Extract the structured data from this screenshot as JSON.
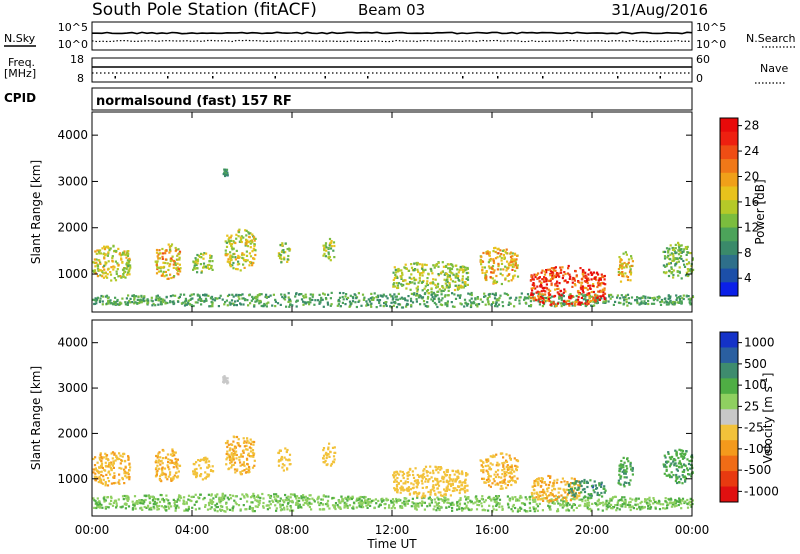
{
  "header": {
    "station": "South Pole Station (fitACF)",
    "beam": "Beam 03",
    "date": "31/Aug/2016",
    "cpid_label": "CPID",
    "cpid_value": "normalsound (fast) 157 RF"
  },
  "top_panels": {
    "nsky_label": "N.Sky",
    "nsearch_label": "N.Search",
    "noise_ticks_left": [
      "10^5",
      "10^0"
    ],
    "noise_ticks_right": [
      "10^5",
      "10^0"
    ],
    "freq_label": "Freq.",
    "freq_unit": "[MHz]",
    "freq_ticks": [
      "18",
      "8"
    ],
    "nave_label": "Nave",
    "nave_ticks": [
      "60",
      "0"
    ]
  },
  "chart_data": [
    {
      "type": "heatmap",
      "title": "",
      "ylabel": "Slant Range [km]",
      "xlabel": "",
      "x_ticks": [
        "00:00",
        "04:00",
        "08:00",
        "12:00",
        "16:00",
        "20:00",
        "00:00"
      ],
      "y_ticks": [
        1000,
        2000,
        3000,
        4000
      ],
      "ylim": [
        180,
        4500
      ],
      "colorbar": {
        "label": "Power [dB]",
        "ticks": [
          "4",
          "8",
          "12",
          "16",
          "20",
          "24",
          "28"
        ],
        "range": [
          0,
          30
        ],
        "colors": [
          "#0b20e8",
          "#1c4fa8",
          "#2e6f8a",
          "#3a8a6a",
          "#4ca35a",
          "#7bbd3e",
          "#b5c928",
          "#e8c21c",
          "#f0a019",
          "#f07818",
          "#ef4d14",
          "#ee2010",
          "#e80a0a"
        ]
      },
      "features": [
        {
          "start_h": 0.0,
          "end_h": 24.0,
          "range_km": [
            300,
            620
          ],
          "value_db": 10,
          "note": ""
        },
        {
          "start_h": 0.0,
          "end_h": 1.5,
          "range_km": [
            850,
            1650
          ],
          "value_db": 16
        },
        {
          "start_h": 2.5,
          "end_h": 3.5,
          "range_km": [
            900,
            1700
          ],
          "value_db": 18
        },
        {
          "start_h": 4.0,
          "end_h": 4.8,
          "range_km": [
            1000,
            1500
          ],
          "value_db": 14
        },
        {
          "start_h": 5.3,
          "end_h": 6.5,
          "range_km": [
            1100,
            2000
          ],
          "value_db": 16
        },
        {
          "start_h": 7.4,
          "end_h": 7.9,
          "range_km": [
            1200,
            1700
          ],
          "value_db": 14
        },
        {
          "start_h": 9.2,
          "end_h": 9.7,
          "range_km": [
            1300,
            1800
          ],
          "value_db": 14
        },
        {
          "start_h": 12.0,
          "end_h": 15.0,
          "range_km": [
            600,
            1300
          ],
          "value_db": 14
        },
        {
          "start_h": 15.5,
          "end_h": 17.0,
          "range_km": [
            800,
            1600
          ],
          "value_db": 18
        },
        {
          "start_h": 17.5,
          "end_h": 20.5,
          "range_km": [
            300,
            1200
          ],
          "value_db": 26
        },
        {
          "start_h": 21.0,
          "end_h": 21.6,
          "range_km": [
            800,
            1500
          ],
          "value_db": 18
        },
        {
          "start_h": 22.8,
          "end_h": 24.0,
          "range_km": [
            900,
            1700
          ],
          "value_db": 12
        },
        {
          "start_h": 5.2,
          "end_h": 5.4,
          "range_km": [
            3100,
            3300
          ],
          "value_db": 8
        }
      ]
    },
    {
      "type": "heatmap",
      "title": "",
      "ylabel": "Slant Range [km]",
      "xlabel": "Time UT",
      "x_ticks": [
        "00:00",
        "04:00",
        "08:00",
        "12:00",
        "16:00",
        "20:00",
        "00:00"
      ],
      "y_ticks": [
        1000,
        2000,
        3000,
        4000
      ],
      "ylim": [
        180,
        4500
      ],
      "colorbar": {
        "label": "Velocity [m s^-1]",
        "ticks": [
          "1000",
          "500",
          "100",
          "25",
          "-25",
          "-100",
          "-500",
          "-1000"
        ],
        "range": [
          -1200,
          1200
        ],
        "colors": [
          "#1432c8",
          "#2a5fa0",
          "#3e8c6e",
          "#4fae44",
          "#8fd060",
          "#c8c8c8",
          "#f2c23a",
          "#f49a1c",
          "#f06c16",
          "#e83a10",
          "#e01010"
        ]
      },
      "features": [
        {
          "start_h": 0.0,
          "end_h": 11.0,
          "range_km": [
            300,
            700
          ],
          "value_ms": 300
        },
        {
          "start_h": 11.0,
          "end_h": 24.0,
          "range_km": [
            300,
            650
          ],
          "value_ms": 300
        },
        {
          "start_h": 0.0,
          "end_h": 1.5,
          "range_km": [
            850,
            1650
          ],
          "value_ms": -300
        },
        {
          "start_h": 2.5,
          "end_h": 3.5,
          "range_km": [
            900,
            1700
          ],
          "value_ms": -300
        },
        {
          "start_h": 4.0,
          "end_h": 4.8,
          "range_km": [
            1000,
            1500
          ],
          "value_ms": -200
        },
        {
          "start_h": 5.3,
          "end_h": 6.5,
          "range_km": [
            1100,
            2000
          ],
          "value_ms": -300
        },
        {
          "start_h": 7.4,
          "end_h": 7.9,
          "range_km": [
            1200,
            1700
          ],
          "value_ms": -200
        },
        {
          "start_h": 9.2,
          "end_h": 9.7,
          "range_km": [
            1300,
            1800
          ],
          "value_ms": -200
        },
        {
          "start_h": 12.0,
          "end_h": 15.0,
          "range_km": [
            600,
            1300
          ],
          "value_ms": -200
        },
        {
          "start_h": 15.5,
          "end_h": 17.0,
          "range_km": [
            800,
            1600
          ],
          "value_ms": -300
        },
        {
          "start_h": 17.5,
          "end_h": 19.5,
          "range_km": [
            500,
            1100
          ],
          "value_ms": -300
        },
        {
          "start_h": 19.0,
          "end_h": 20.5,
          "range_km": [
            600,
            1000
          ],
          "value_ms": 600
        },
        {
          "start_h": 21.0,
          "end_h": 21.6,
          "range_km": [
            800,
            1500
          ],
          "value_ms": 500
        },
        {
          "start_h": 22.8,
          "end_h": 24.0,
          "range_km": [
            900,
            1700
          ],
          "value_ms": 500
        },
        {
          "start_h": 5.2,
          "end_h": 5.4,
          "range_km": [
            3100,
            3300
          ],
          "value_ms": 20
        }
      ]
    }
  ],
  "x_axis_label": "Time UT"
}
